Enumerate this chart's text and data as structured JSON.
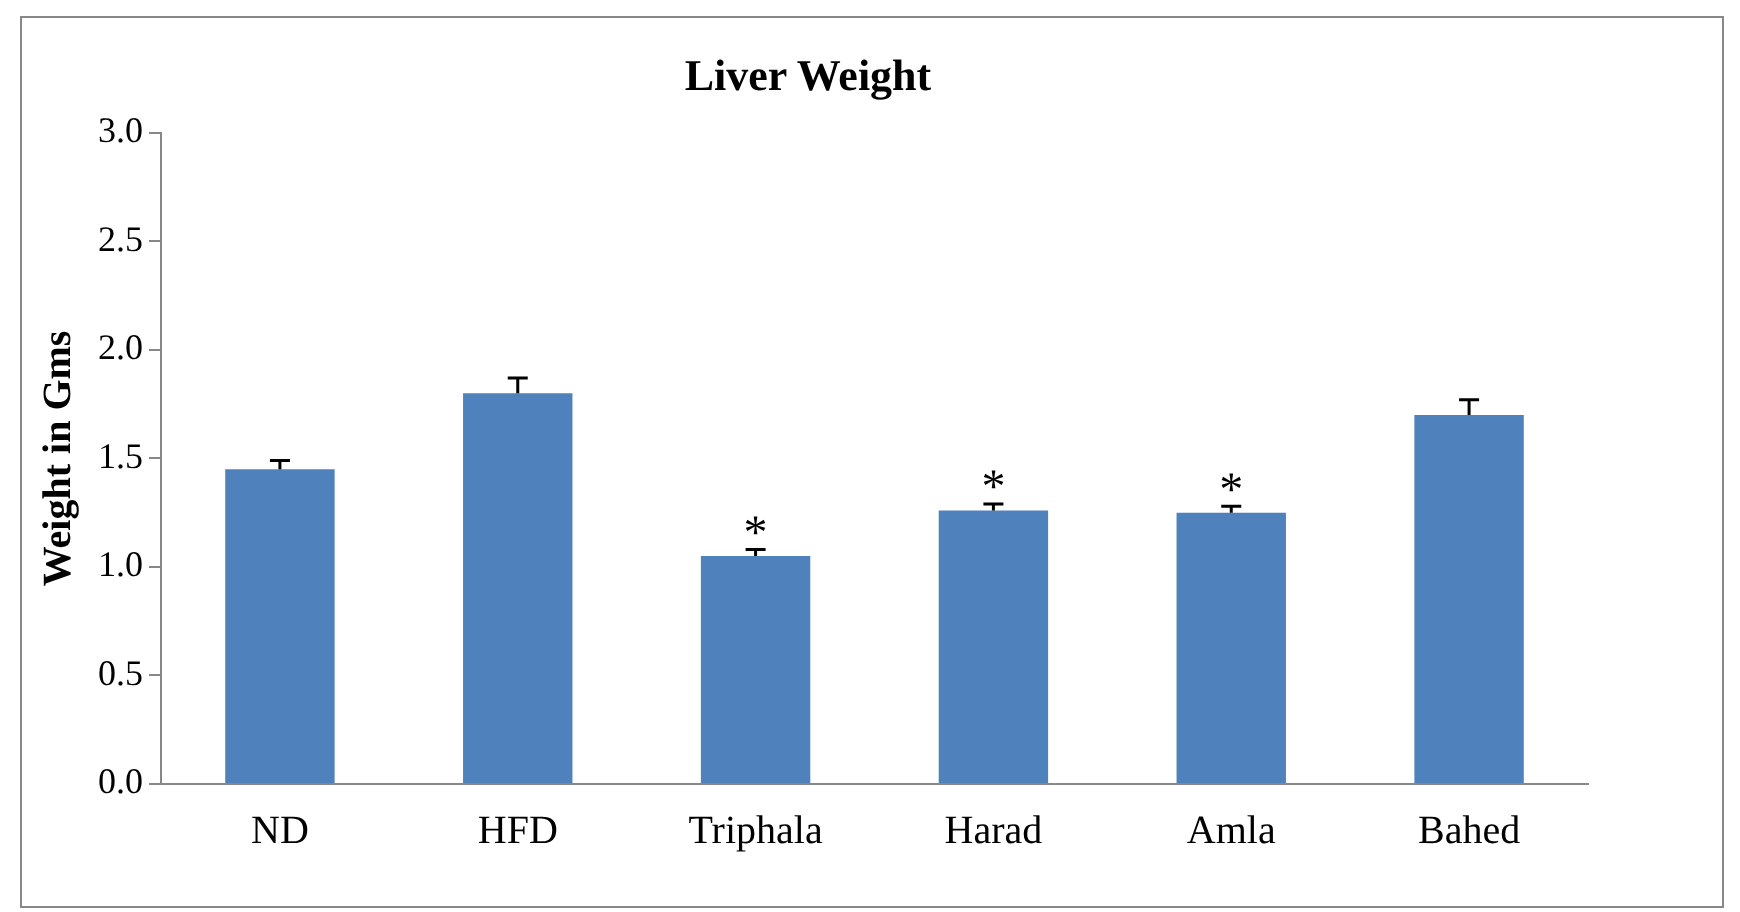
{
  "chart_data": {
    "type": "bar",
    "title": "Liver Weight",
    "ylabel": "Weight in Gms",
    "categories": [
      "ND",
      "HFD",
      "Triphala",
      "Harad",
      "Amla",
      "Bahed"
    ],
    "values": [
      1.45,
      1.8,
      1.05,
      1.26,
      1.25,
      1.7
    ],
    "errors": [
      [
        1.45,
        1.49
      ],
      [
        1.8,
        1.87
      ],
      [
        1.05,
        1.08
      ],
      [
        1.26,
        1.29
      ],
      [
        1.25,
        1.28
      ],
      [
        1.7,
        1.77
      ]
    ],
    "color": "#4f81bd",
    "ylim": [
      0,
      3
    ],
    "yticks": [
      {
        "value": 0,
        "label": "0.0"
      },
      {
        "value": 0.5,
        "label": "0.5"
      },
      {
        "value": 1,
        "label": "1.0"
      },
      {
        "value": 1.5,
        "label": "1.5"
      },
      {
        "value": 2,
        "label": "2.0"
      },
      {
        "value": 2.5,
        "label": "2.5"
      },
      {
        "value": 3,
        "label": "3.0"
      }
    ],
    "annotations": [
      {
        "text": "*",
        "x": "Triphala",
        "y": 1.05
      },
      {
        "text": "*",
        "x": "Harad",
        "y": 1.26
      },
      {
        "text": "*",
        "x": "Amla",
        "y": 1.25
      }
    ],
    "grid": false,
    "legend": false
  }
}
